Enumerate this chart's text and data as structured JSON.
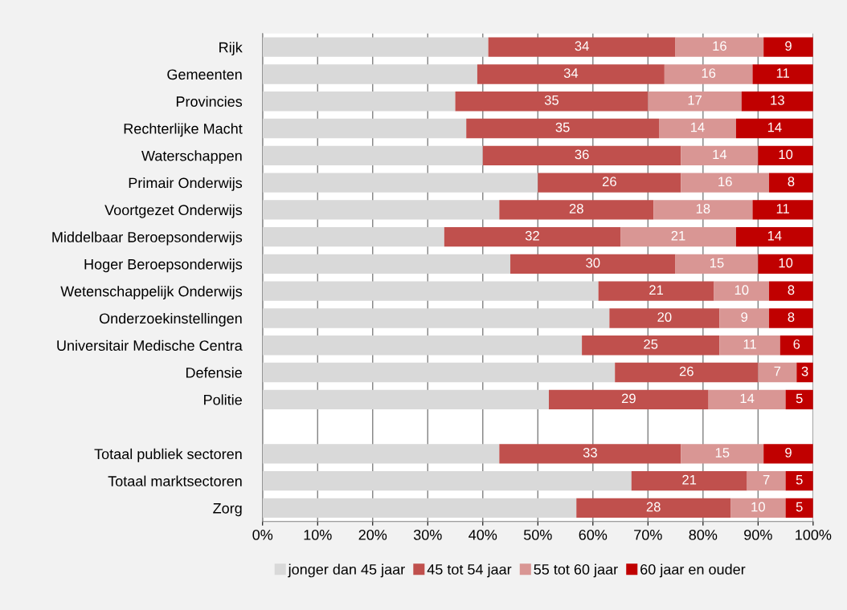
{
  "chart_data": {
    "type": "bar",
    "orientation": "horizontal",
    "stacked": true,
    "categories": [
      "Rijk",
      "Gemeenten",
      "Provincies",
      "Rechterlijke Macht",
      "Waterschappen",
      "Primair Onderwijs",
      "Voortgezet Onderwijs",
      "Middelbaar Beroepsonderwijs",
      "Hoger Beroepsonderwijs",
      "Wetenschappelijk Onderwijs",
      "Onderzoekinstellingen",
      "Universitair Medische Centra",
      "Defensie",
      "Politie",
      null,
      "Totaal publiek sectoren",
      "Totaal marktsectoren",
      "Zorg"
    ],
    "series": [
      {
        "name": "jonger dan 45 jaar",
        "color": "#d9d9d9",
        "values": [
          41,
          39,
          35,
          37,
          40,
          50,
          43,
          33,
          45,
          61,
          63,
          58,
          64,
          52,
          null,
          43,
          67,
          57
        ]
      },
      {
        "name": "45 tot 54 jaar",
        "color": "#c0504d",
        "values": [
          34,
          34,
          35,
          35,
          36,
          26,
          28,
          32,
          30,
          21,
          20,
          25,
          26,
          29,
          null,
          33,
          21,
          28
        ],
        "value_labels": [
          "34",
          "34",
          "35",
          "35",
          "36",
          "26",
          "28",
          "32",
          "30",
          "21",
          "20",
          "25",
          "26",
          "29",
          null,
          "33",
          "21",
          "28"
        ]
      },
      {
        "name": "55 tot 60 jaar",
        "color": "#d99694",
        "values": [
          16,
          16,
          17,
          14,
          14,
          16,
          18,
          21,
          15,
          10,
          9,
          11,
          7,
          14,
          null,
          15,
          7,
          10
        ],
        "value_labels": [
          "16",
          "16",
          "17",
          "14",
          "14",
          "16",
          "18",
          "21",
          "15",
          "10",
          "9",
          "11",
          "7",
          "14",
          null,
          "15",
          "7",
          "10"
        ]
      },
      {
        "name": "60 jaar en ouder",
        "color": "#c00000",
        "values": [
          9,
          11,
          13,
          14,
          10,
          8,
          11,
          14,
          10,
          8,
          8,
          6,
          3,
          5,
          null,
          9,
          5,
          5
        ],
        "value_labels": [
          "9",
          "11",
          "13",
          "14",
          "10",
          "8",
          "11",
          "14",
          "10",
          "8",
          "8",
          "6",
          "3",
          "5",
          null,
          "9",
          "5",
          "5"
        ]
      }
    ],
    "xlim": [
      0,
      100
    ],
    "xticks": [
      {
        "value": 0,
        "label": "0%"
      },
      {
        "value": 10,
        "label": "10%"
      },
      {
        "value": 20,
        "label": "20%"
      },
      {
        "value": 30,
        "label": "30%"
      },
      {
        "value": 40,
        "label": "40%"
      },
      {
        "value": 50,
        "label": "50%"
      },
      {
        "value": 60,
        "label": "60%"
      },
      {
        "value": 70,
        "label": "70%"
      },
      {
        "value": 80,
        "label": "80%"
      },
      {
        "value": 90,
        "label": "90%"
      },
      {
        "value": 100,
        "label": "100%"
      }
    ],
    "grid": "x",
    "legend": "bottom"
  }
}
